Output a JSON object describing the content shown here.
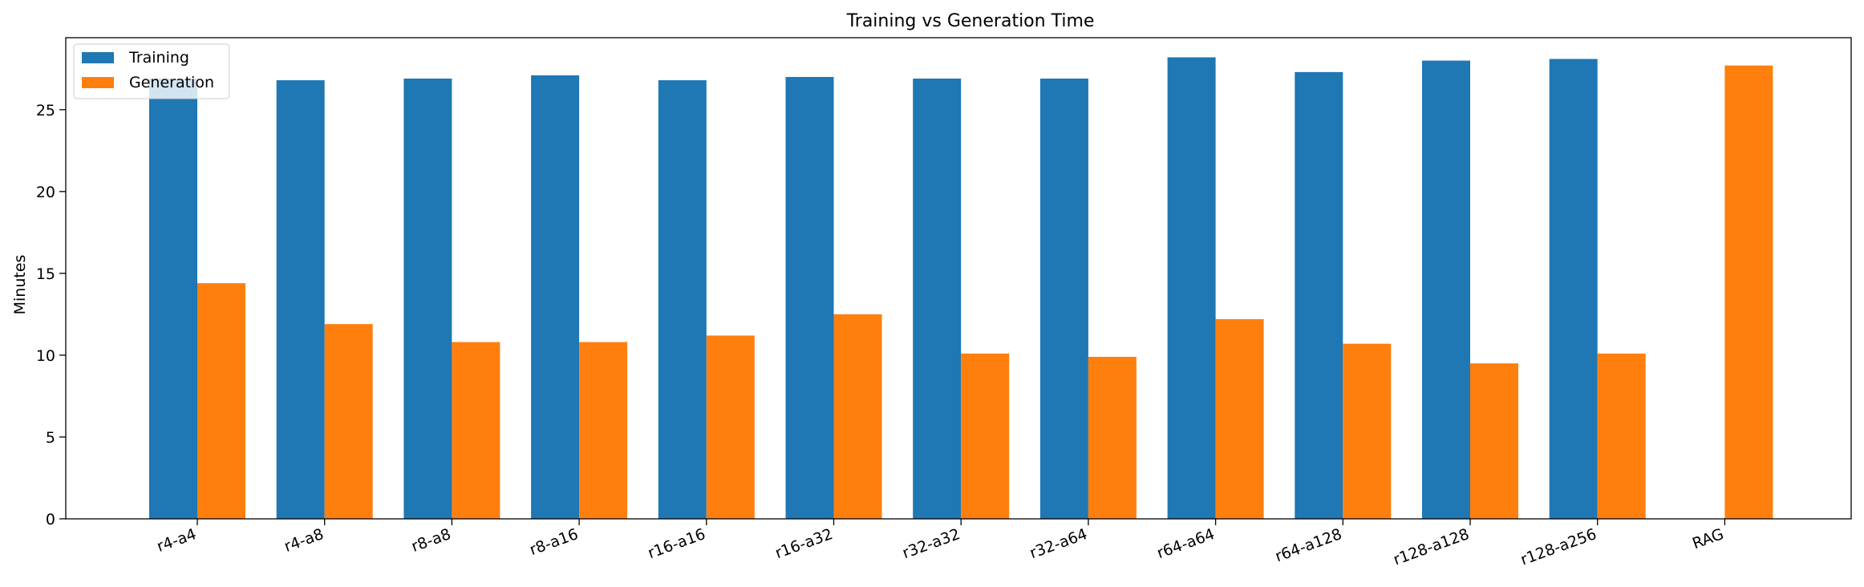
{
  "chart_data": {
    "type": "bar",
    "title": "Training vs Generation Time",
    "xlabel": "",
    "ylabel": "Minutes",
    "categories": [
      "r4-a4",
      "r4-a8",
      "r8-a8",
      "r8-a16",
      "r16-a16",
      "r16-a32",
      "r32-a32",
      "r32-a64",
      "r64-a64",
      "r64-a128",
      "r128-a128",
      "r128-a256",
      "RAG"
    ],
    "series": [
      {
        "name": "Training",
        "color": "#1f77b4",
        "values": [
          26.9,
          26.8,
          26.9,
          27.1,
          26.8,
          27.0,
          26.9,
          26.9,
          28.2,
          27.3,
          28.0,
          28.1,
          0
        ]
      },
      {
        "name": "Generation",
        "color": "#ff7f0e",
        "values": [
          14.4,
          11.9,
          10.8,
          10.8,
          11.2,
          12.5,
          10.1,
          9.9,
          12.2,
          10.7,
          9.5,
          10.1,
          27.7
        ]
      }
    ],
    "ylim": [
      0,
      29.4
    ],
    "yticks": [
      0,
      5,
      10,
      15,
      20,
      25
    ],
    "grid": false,
    "legend_position": "top-left"
  }
}
